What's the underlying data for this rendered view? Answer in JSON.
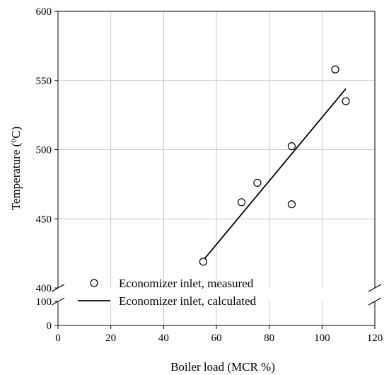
{
  "chart_data": {
    "type": "scatter",
    "xlabel": "Boiler load (MCR %)",
    "ylabel_main": "Temperature (",
    "ylabel_sup": "o",
    "ylabel_tail": "C)",
    "xlim": [
      0,
      120
    ],
    "x_ticks": [
      "0",
      "20",
      "40",
      "60",
      "80",
      "100",
      "120"
    ],
    "y_segments": [
      {
        "ylim": [
          400,
          600
        ],
        "ticks": [
          "400",
          "450",
          "500",
          "550",
          "600"
        ]
      },
      {
        "ylim": [
          0,
          100
        ],
        "ticks": [
          "0",
          "100"
        ]
      }
    ],
    "axis_break": "y, between 100 and 400",
    "grid": true,
    "legend_position": "bottom-left",
    "series": [
      {
        "name": "Economizer inlet, measured",
        "style": "open-circle-markers",
        "points": [
          {
            "x": 55,
            "y": 419
          },
          {
            "x": 69.5,
            "y": 462
          },
          {
            "x": 75.5,
            "y": 476
          },
          {
            "x": 88.5,
            "y": 502.5
          },
          {
            "x": 88.5,
            "y": 460.5
          },
          {
            "x": 105,
            "y": 558
          },
          {
            "x": 109,
            "y": 535
          }
        ]
      },
      {
        "name": "Economizer inlet, calculated",
        "style": "solid-line",
        "points": [
          {
            "x": 55,
            "y": 420
          },
          {
            "x": 109,
            "y": 544
          }
        ]
      }
    ],
    "colors": {
      "line": "#000000",
      "grid": "#c8c8c8",
      "background": "#ffffff"
    }
  }
}
